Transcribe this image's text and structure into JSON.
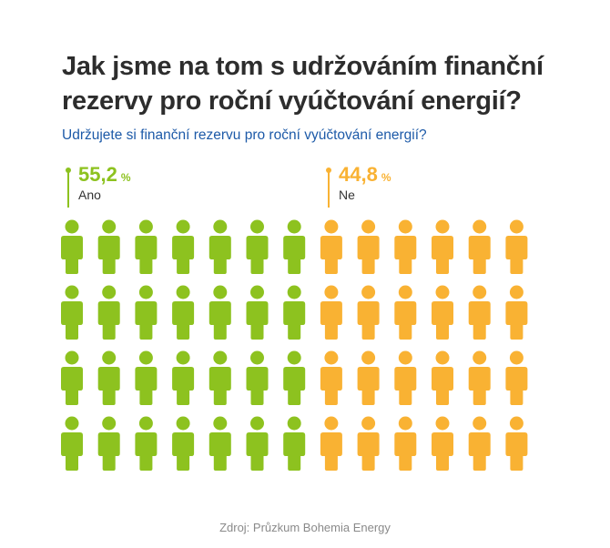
{
  "title": "Jak jsme na tom s udržováním finanční rezervy pro roční vyúčtování energií?",
  "subtitle": "Udržujete si finanční rezervu pro roční vyúčtování energií?",
  "source": "Zdroj: Průzkum Bohemia Energy",
  "colors": {
    "ano": "#8dc21f",
    "ne": "#f9b233",
    "title": "#2d2d2d",
    "subtitle": "#1d5aa8"
  },
  "chart_data": {
    "type": "pictogram",
    "title": "Jak jsme na tom s udržováním finanční rezervy pro roční vyúčtování energií?",
    "subtitle": "Udržujete si finanční rezervu pro roční vyúčtování energií?",
    "categories": [
      "Ano",
      "Ne"
    ],
    "values": [
      55.2,
      44.8
    ],
    "unit": "%",
    "series": [
      {
        "name": "Ano",
        "value": 55.2,
        "value_text": "55,2",
        "unit": "%",
        "color": "#8dc21f",
        "icons_per_row": 7
      },
      {
        "name": "Ne",
        "value": 44.8,
        "value_text": "44,8",
        "unit": "%",
        "color": "#f9b233",
        "icons_per_row": 6
      }
    ],
    "rows": 4,
    "total_icons": 52,
    "legend": "none",
    "grid": false
  }
}
